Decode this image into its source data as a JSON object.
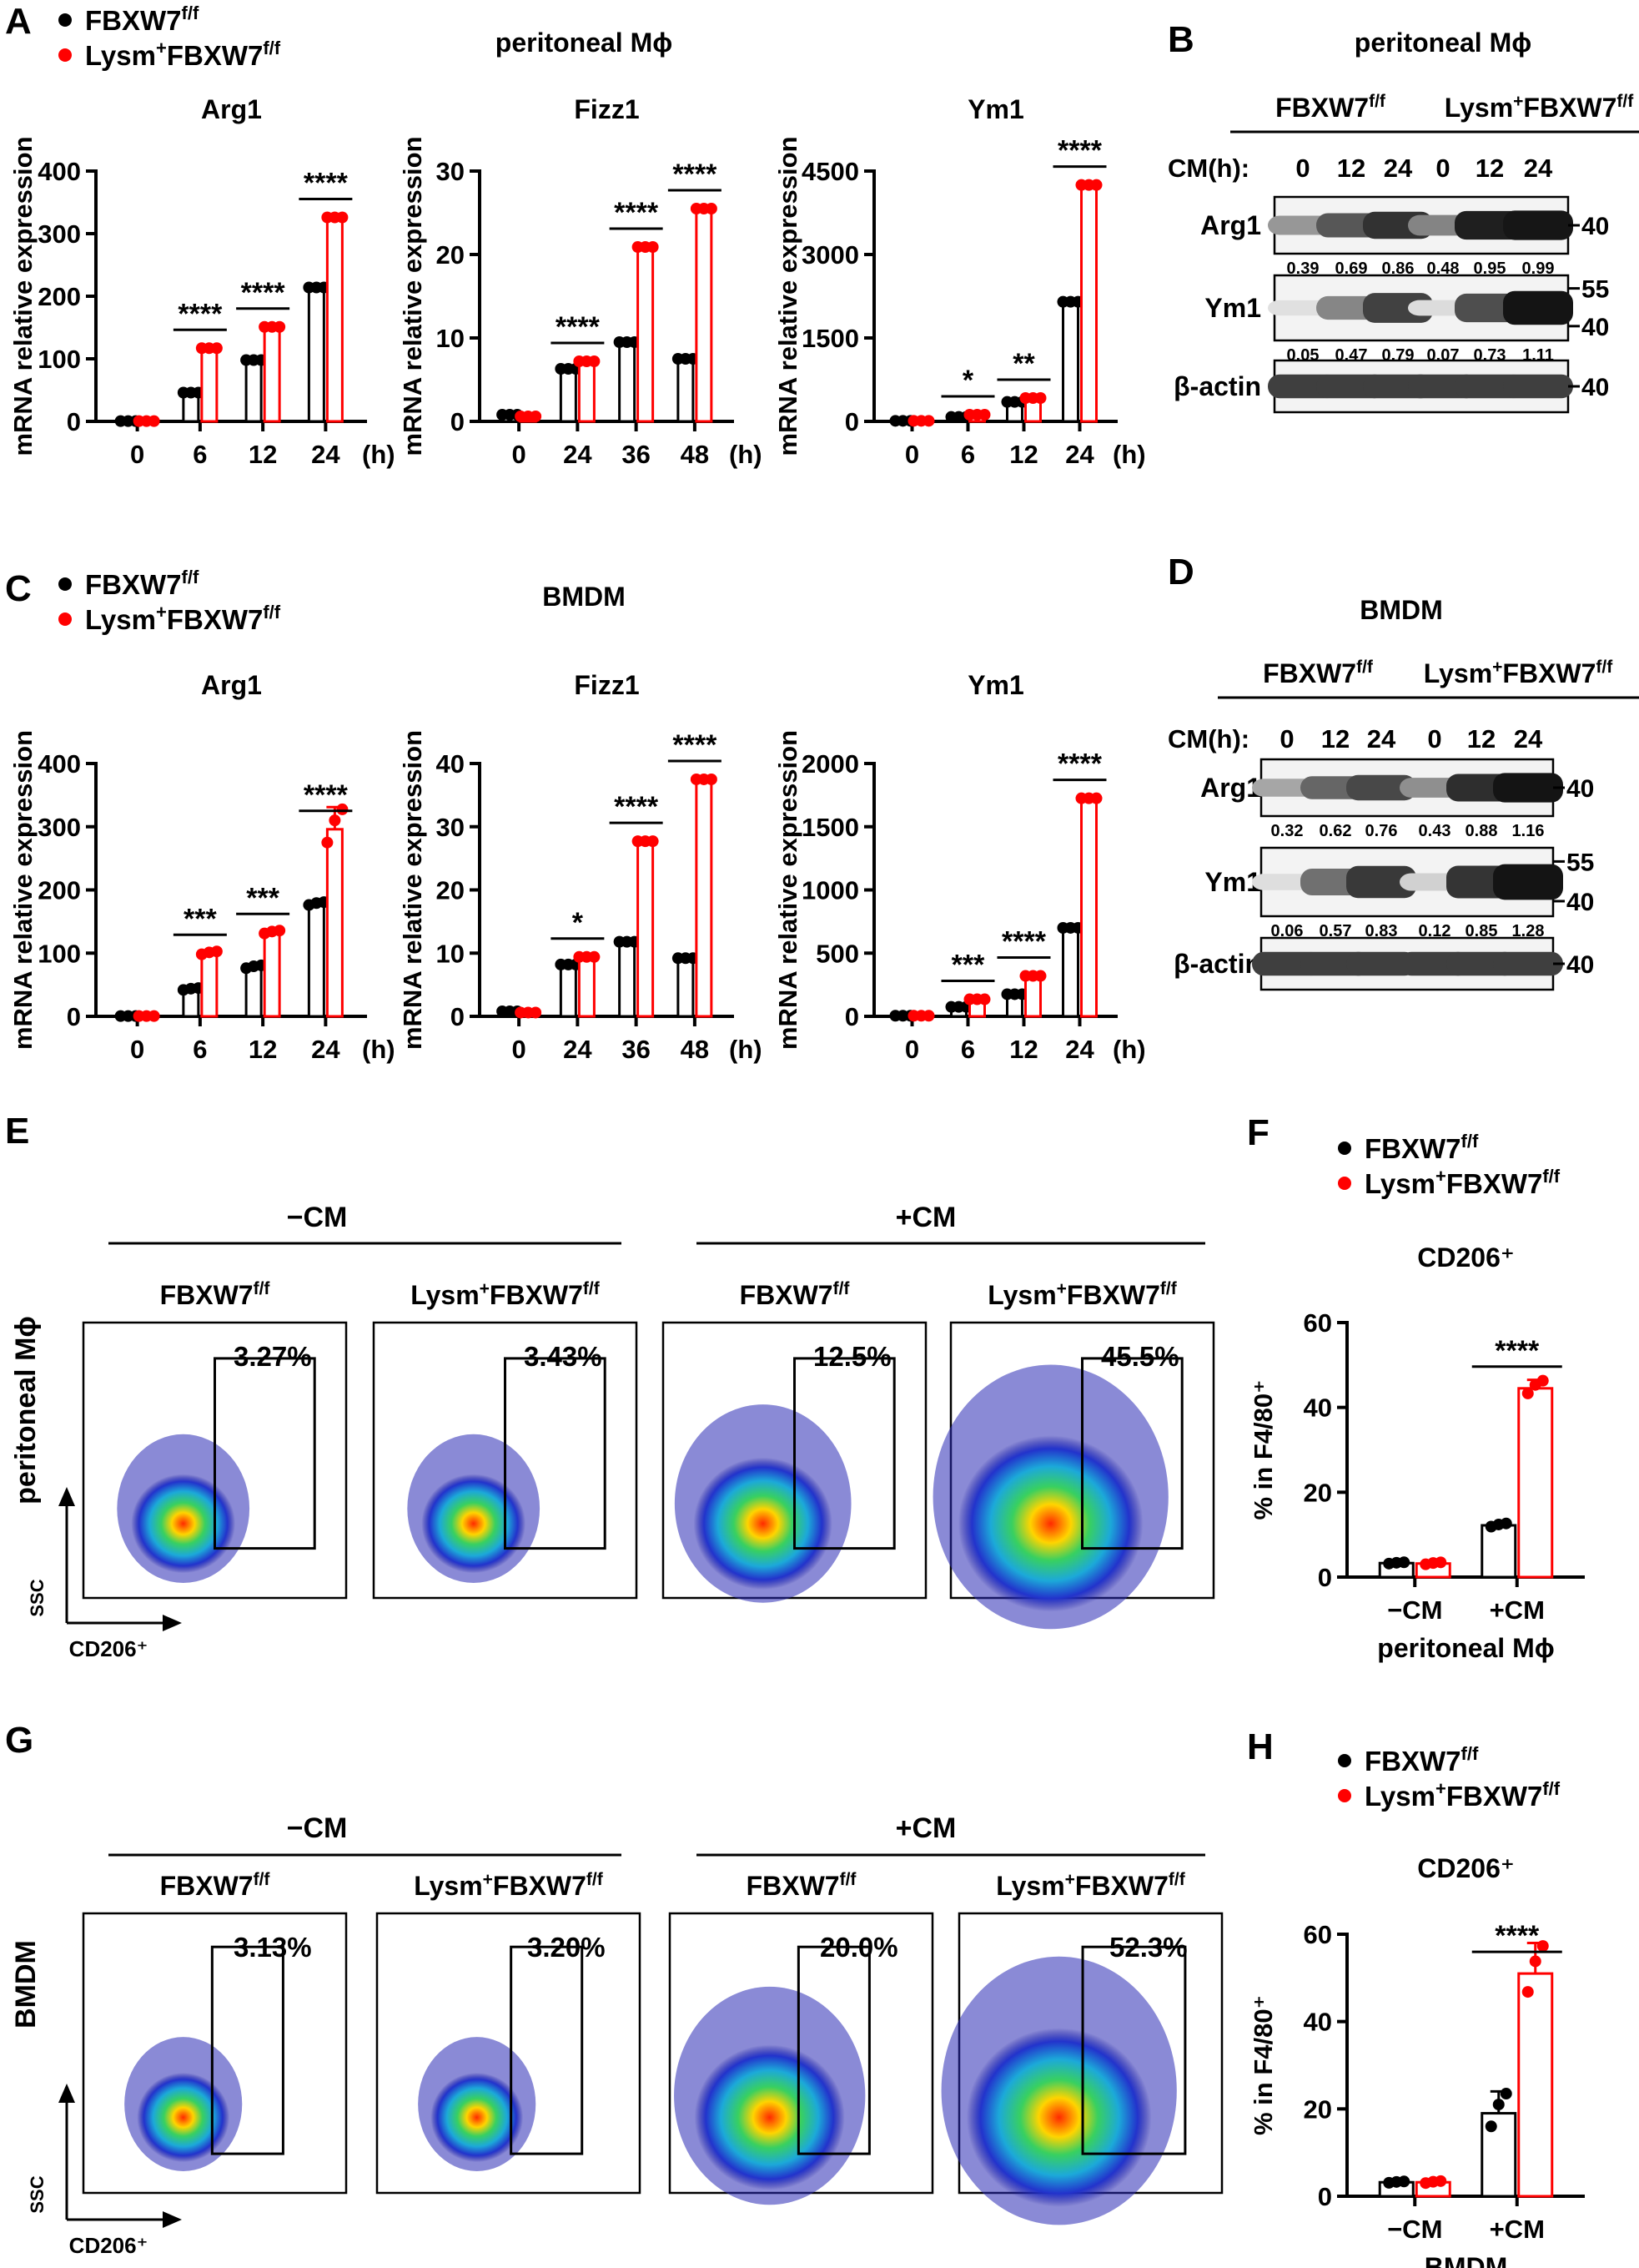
{
  "colors": {
    "ctrl": "#000000",
    "ko": "#ff0000",
    "text": "#000000"
  },
  "legend": {
    "ctrl": {
      "base": "FBXW7",
      "sup": "f/f"
    },
    "ko": {
      "pre": "Lysm",
      "pre_sup": "+",
      "base": "FBXW7",
      "sup": "f/f"
    }
  },
  "panels": {
    "A": {
      "letter": "A",
      "title": "peritoneal Mϕ"
    },
    "B": {
      "letter": "B",
      "title": "peritoneal Mϕ"
    },
    "C": {
      "letter": "C",
      "title": "BMDM"
    },
    "D": {
      "letter": "D",
      "title": "BMDM"
    },
    "E": {
      "letter": "E",
      "row_label": "peritoneal Mϕ",
      "minus_cm": "−CM",
      "plus_cm": "+CM"
    },
    "F": {
      "letter": "F"
    },
    "G": {
      "letter": "G",
      "row_label": "BMDM",
      "minus_cm": "−CM",
      "plus_cm": "+CM"
    },
    "H": {
      "letter": "H"
    }
  },
  "chart_data": [
    {
      "id": "A-Arg1",
      "type": "bar",
      "title": "Arg1",
      "ylabel": "mRNA relative expression",
      "categories": [
        "0",
        "6",
        "12",
        "24"
      ],
      "unit_label": "(h)",
      "ylim": [
        0,
        400
      ],
      "yticks": [
        0,
        100,
        200,
        300,
        400
      ],
      "series": [
        {
          "name": "FBXW7f/f",
          "values": [
            0.5,
            46,
            98,
            214
          ]
        },
        {
          "name": "Lysm+FBXW7f/f",
          "values": [
            0.5,
            117,
            151,
            326
          ]
        }
      ],
      "significance": [
        "",
        "****",
        "****",
        "****"
      ]
    },
    {
      "id": "A-Fizz1",
      "type": "bar",
      "title": "Fizz1",
      "ylabel": "mRNA relative expression",
      "categories": [
        "0",
        "24",
        "36",
        "48"
      ],
      "unit_label": "(h)",
      "ylim": [
        0,
        30
      ],
      "yticks": [
        0,
        10,
        20,
        30
      ],
      "series": [
        {
          "name": "FBXW7f/f",
          "values": [
            0.8,
            6.3,
            9.5,
            7.5
          ]
        },
        {
          "name": "Lysm+FBXW7f/f",
          "values": [
            0.6,
            7.2,
            20.9,
            25.5
          ]
        }
      ],
      "significance": [
        "",
        "****",
        "****",
        "****"
      ]
    },
    {
      "id": "A-Ym1",
      "type": "bar",
      "title": "Ym1",
      "ylabel": "mRNA relative expression",
      "categories": [
        "0",
        "6",
        "12",
        "24"
      ],
      "unit_label": "(h)",
      "ylim": [
        0,
        4500
      ],
      "yticks": [
        0,
        1500,
        3000,
        4500
      ],
      "series": [
        {
          "name": "FBXW7f/f",
          "values": [
            10,
            80,
            350,
            2150
          ]
        },
        {
          "name": "Lysm+FBXW7f/f",
          "values": [
            10,
            120,
            420,
            4250
          ]
        }
      ],
      "significance": [
        "",
        "*",
        "**",
        "****"
      ]
    },
    {
      "id": "C-Arg1",
      "type": "bar",
      "title": "Arg1",
      "ylabel": "mRNA relative expression",
      "categories": [
        "0",
        "6",
        "12",
        "24"
      ],
      "unit_label": "(h)",
      "ylim": [
        0,
        400
      ],
      "yticks": [
        0,
        100,
        200,
        300,
        400
      ],
      "series": [
        {
          "name": "FBXW7f/f",
          "values": [
            0.5,
            43,
            78,
            178
          ]
        },
        {
          "name": "Lysm+FBXW7f/f",
          "values": [
            0.5,
            100,
            133,
            296
          ]
        }
      ],
      "errors": [
        [
          0,
          2,
          3,
          3
        ],
        [
          0,
          3,
          3,
          35
        ]
      ],
      "significance": [
        "",
        "***",
        "***",
        "****"
      ]
    },
    {
      "id": "C-Fizz1",
      "type": "bar",
      "title": "Fizz1",
      "ylabel": "mRNA relative expression",
      "categories": [
        "0",
        "24",
        "36",
        "48"
      ],
      "unit_label": "(h)",
      "ylim": [
        0,
        40
      ],
      "yticks": [
        0,
        10,
        20,
        30,
        40
      ],
      "series": [
        {
          "name": "FBXW7f/f",
          "values": [
            0.8,
            8.2,
            11.8,
            9.2
          ]
        },
        {
          "name": "Lysm+FBXW7f/f",
          "values": [
            0.6,
            9.4,
            27.7,
            37.5
          ]
        }
      ],
      "significance": [
        "",
        "*",
        "****",
        "****"
      ]
    },
    {
      "id": "C-Ym1",
      "type": "bar",
      "title": "Ym1",
      "ylabel": "mRNA relative expression",
      "categories": [
        "0",
        "6",
        "12",
        "24"
      ],
      "unit_label": "(h)",
      "ylim": [
        0,
        2000
      ],
      "yticks": [
        0,
        500,
        1000,
        1500,
        2000
      ],
      "series": [
        {
          "name": "FBXW7f/f",
          "values": [
            5,
            75,
            175,
            700
          ]
        },
        {
          "name": "Lysm+FBXW7f/f",
          "values": [
            5,
            135,
            320,
            1725
          ]
        }
      ],
      "significance": [
        "",
        "***",
        "****",
        "****"
      ]
    },
    {
      "id": "F",
      "type": "bar",
      "title": "CD206⁺",
      "ylabel": "% in F4/80⁺",
      "categories": [
        "−CM",
        "+CM"
      ],
      "xlabel": "peritoneal Mϕ",
      "ylim": [
        0,
        60
      ],
      "yticks": [
        0,
        20,
        40,
        60
      ],
      "series": [
        {
          "name": "FBXW7f/f",
          "values": [
            3.3,
            12.2
          ]
        },
        {
          "name": "Lysm+FBXW7f/f",
          "values": [
            3.2,
            44.5
          ]
        }
      ],
      "errors": [
        [
          0.2,
          0.5
        ],
        [
          0.3,
          2
        ]
      ],
      "significance": [
        "",
        "****"
      ]
    },
    {
      "id": "H",
      "type": "bar",
      "title": "CD206⁺",
      "ylabel": "% in F4/80⁺",
      "categories": [
        "−CM",
        "+CM"
      ],
      "xlabel": "BMDM",
      "ylim": [
        0,
        60
      ],
      "yticks": [
        0,
        20,
        40,
        60
      ],
      "series": [
        {
          "name": "FBXW7f/f",
          "values": [
            3.2,
            19
          ]
        },
        {
          "name": "Lysm+FBXW7f/f",
          "values": [
            3.2,
            51
          ]
        }
      ],
      "errors": [
        [
          0.2,
          5
        ],
        [
          0.3,
          7
        ]
      ],
      "significance": [
        "",
        "****"
      ]
    }
  ],
  "blots": {
    "B": {
      "cm_label": "CM(h):",
      "time_labels": [
        "0",
        "12",
        "24",
        "0",
        "12",
        "24"
      ],
      "rows": [
        {
          "label": "Arg1",
          "values": [
            "0.39",
            "0.69",
            "0.86",
            "0.48",
            "0.95",
            "0.99"
          ],
          "markers": [
            "40"
          ],
          "intensity": [
            0.39,
            0.69,
            0.86,
            0.48,
            0.95,
            0.99
          ]
        },
        {
          "label": "Ym1",
          "values": [
            "0.05",
            "0.47",
            "0.79",
            "0.07",
            "0.73",
            "1.11"
          ],
          "markers": [
            "55",
            "40"
          ],
          "intensity": [
            0.05,
            0.47,
            0.79,
            0.07,
            0.73,
            1.0
          ]
        },
        {
          "label": "β-actin",
          "values": [],
          "markers": [
            "40"
          ],
          "intensity": [
            0.8,
            0.8,
            0.8,
            0.8,
            0.8,
            0.8
          ]
        }
      ]
    },
    "D": {
      "cm_label": "CM(h):",
      "time_labels": [
        "0",
        "12",
        "24",
        "0",
        "12",
        "24"
      ],
      "rows": [
        {
          "label": "Arg1",
          "values": [
            "0.32",
            "0.62",
            "0.76",
            "0.43",
            "0.88",
            "1.16"
          ],
          "markers": [
            "40"
          ],
          "intensity": [
            0.32,
            0.62,
            0.76,
            0.43,
            0.88,
            1.0
          ]
        },
        {
          "label": "Ym1",
          "values": [
            "0.06",
            "0.57",
            "0.83",
            "0.12",
            "0.85",
            "1.28"
          ],
          "markers": [
            "55",
            "40"
          ],
          "intensity": [
            0.06,
            0.57,
            0.83,
            0.12,
            0.85,
            1.0
          ]
        },
        {
          "label": "β-actin",
          "values": [],
          "markers": [
            "40"
          ],
          "intensity": [
            0.8,
            0.8,
            0.8,
            0.8,
            0.8,
            0.8
          ]
        }
      ]
    }
  },
  "flow": {
    "E": {
      "y_axis": "SSC",
      "x_axis": "CD206⁺",
      "plots": [
        {
          "group": "FBXW7f/f",
          "pct": "3.27%",
          "spread": 0.9
        },
        {
          "group": "Lysm+FBXW7f/f",
          "pct": "3.43%",
          "spread": 0.9
        },
        {
          "group": "FBXW7f/f",
          "pct": "12.5%",
          "spread": 1.2
        },
        {
          "group": "Lysm+FBXW7f/f",
          "pct": "45.5%",
          "spread": 1.6
        }
      ]
    },
    "G": {
      "y_axis": "SSC",
      "x_axis": "CD206⁺",
      "plots": [
        {
          "group": "FBXW7f/f",
          "pct": "3.13%",
          "spread": 0.8
        },
        {
          "group": "Lysm+FBXW7f/f",
          "pct": "3.20%",
          "spread": 0.8
        },
        {
          "group": "FBXW7f/f",
          "pct": "20.0%",
          "spread": 1.3
        },
        {
          "group": "Lysm+FBXW7f/f",
          "pct": "52.3%",
          "spread": 1.6
        }
      ]
    }
  }
}
